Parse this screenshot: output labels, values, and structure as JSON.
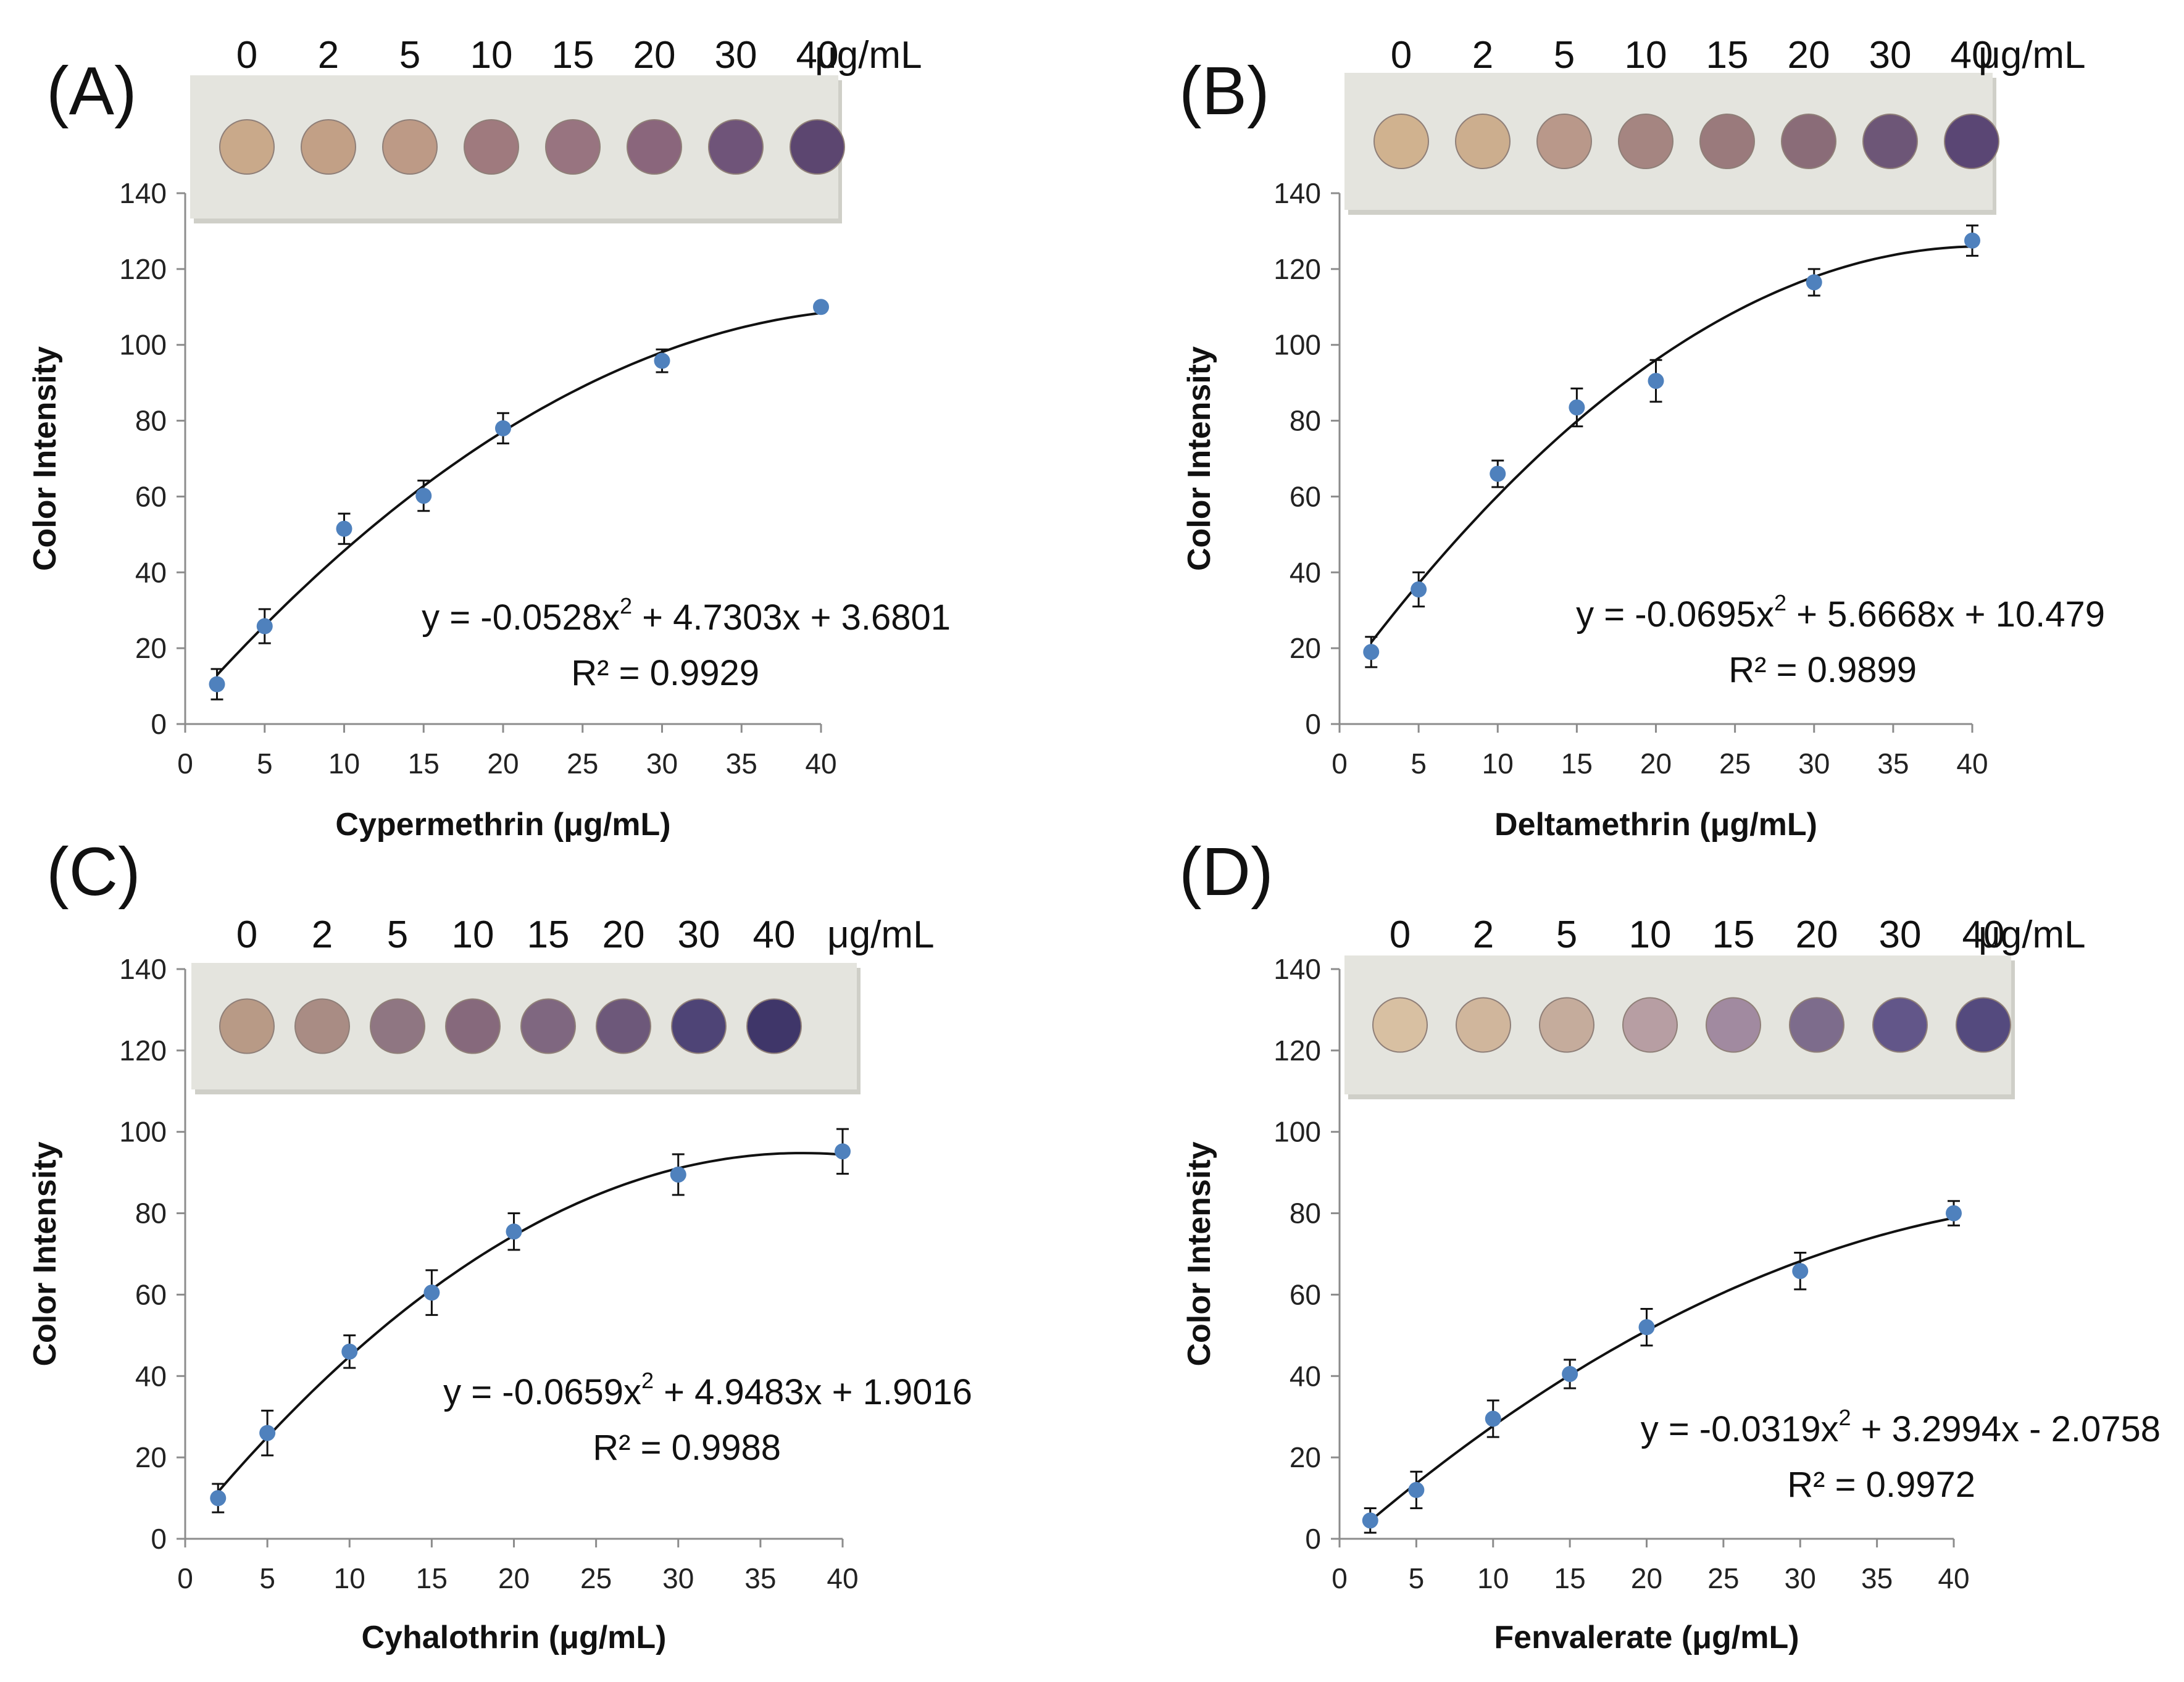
{
  "figure": {
    "unit_label": "μg/mL",
    "y_axis_title": "Color Intensity",
    "r2_prefix": "R² = "
  },
  "chart_data": [
    {
      "id": "A",
      "panel_label": "(A)",
      "type": "scatter",
      "title": "",
      "xlabel": "Cypermethrin (μg/mL)",
      "ylabel": "Color Intensity",
      "xlim": [
        0,
        40
      ],
      "ylim": [
        0,
        140
      ],
      "xticks": [
        0,
        5,
        10,
        15,
        20,
        25,
        30,
        35,
        40
      ],
      "yticks": [
        0,
        20,
        40,
        60,
        80,
        100,
        120,
        140
      ],
      "concentrations": [
        "0",
        "2",
        "5",
        "10",
        "15",
        "20",
        "30",
        "40"
      ],
      "spot_colors": [
        "#c9a98a",
        "#c2a086",
        "#bd9a86",
        "#9f7a7e",
        "#987480",
        "#8a667c",
        "#6f5479",
        "#5c4670"
      ],
      "series": [
        {
          "name": "Cypermethrin",
          "x": [
            2,
            5,
            10,
            15,
            20,
            30,
            40
          ],
          "y": [
            10.5,
            25.8,
            51.5,
            60.2,
            78.0,
            95.8,
            110.0
          ],
          "err": [
            4.0,
            4.5,
            4.0,
            4.0,
            4.0,
            3.0,
            1.0
          ]
        }
      ],
      "fit": {
        "a": -0.0528,
        "b": 4.7303,
        "c": 3.6801,
        "x_from": 2,
        "x_to": 40
      },
      "equation": {
        "prefix": "y = -0.0528x",
        "suffix": " + 4.7303x + 3.6801",
        "r2": "0.9929"
      }
    },
    {
      "id": "B",
      "panel_label": "(B)",
      "type": "scatter",
      "title": "",
      "xlabel": "Deltamethrin (μg/mL)",
      "ylabel": "Color Intensity",
      "xlim": [
        0,
        40
      ],
      "ylim": [
        0,
        140
      ],
      "xticks": [
        0,
        5,
        10,
        15,
        20,
        25,
        30,
        35,
        40
      ],
      "yticks": [
        0,
        20,
        40,
        60,
        80,
        100,
        120,
        140
      ],
      "concentrations": [
        "0",
        "2",
        "5",
        "10",
        "15",
        "20",
        "30",
        "40"
      ],
      "spot_colors": [
        "#d0b28f",
        "#ccae8e",
        "#b9988a",
        "#a58581",
        "#9a7a7c",
        "#8a6c78",
        "#6d5677",
        "#5a4674"
      ],
      "series": [
        {
          "name": "Deltamethrin",
          "x": [
            2,
            5,
            10,
            15,
            20,
            30,
            40
          ],
          "y": [
            19.0,
            35.5,
            66.0,
            83.5,
            90.5,
            116.5,
            127.5
          ],
          "err": [
            4.0,
            4.5,
            3.5,
            5.0,
            5.5,
            3.5,
            4.0
          ]
        }
      ],
      "fit": {
        "a": -0.0695,
        "b": 5.6668,
        "c": 10.479,
        "x_from": 2,
        "x_to": 40
      },
      "equation": {
        "prefix": "y = -0.0695x",
        "suffix": " + 5.6668x + 10.479",
        "r2": "0.9899"
      }
    },
    {
      "id": "C",
      "panel_label": "(C)",
      "type": "scatter",
      "title": "",
      "xlabel": "Cyhalothrin (μg/mL)",
      "ylabel": "Color Intensity",
      "xlim": [
        0,
        40
      ],
      "ylim": [
        0,
        140
      ],
      "xticks": [
        0,
        5,
        10,
        15,
        20,
        25,
        30,
        35,
        40
      ],
      "yticks": [
        0,
        20,
        40,
        60,
        80,
        100,
        120,
        140
      ],
      "concentrations": [
        "0",
        "2",
        "5",
        "10",
        "15",
        "20",
        "30",
        "40"
      ],
      "spot_colors": [
        "#b89a86",
        "#a98c84",
        "#8f7682",
        "#86697c",
        "#7f6780",
        "#6d587a",
        "#4e4476",
        "#3f3669"
      ],
      "series": [
        {
          "name": "Cyhalothrin",
          "x": [
            2,
            5,
            10,
            15,
            20,
            30,
            40
          ],
          "y": [
            10.0,
            26.0,
            46.0,
            60.5,
            75.5,
            89.5,
            95.2
          ],
          "err": [
            3.5,
            5.5,
            4.0,
            5.5,
            4.5,
            5.0,
            5.5
          ]
        }
      ],
      "fit": {
        "a": -0.0659,
        "b": 4.9483,
        "c": 1.9016,
        "x_from": 2,
        "x_to": 40
      },
      "equation": {
        "prefix": "y = -0.0659x",
        "suffix": " + 4.9483x + 1.9016",
        "r2": "0.9988"
      }
    },
    {
      "id": "D",
      "panel_label": "(D)",
      "type": "scatter",
      "title": "",
      "xlabel": "Fenvalerate (μg/mL)",
      "ylabel": "Color Intensity",
      "xlim": [
        0,
        40
      ],
      "ylim": [
        0,
        140
      ],
      "xticks": [
        0,
        5,
        10,
        15,
        20,
        25,
        30,
        35,
        40
      ],
      "yticks": [
        0,
        20,
        40,
        60,
        80,
        100,
        120,
        140
      ],
      "concentrations": [
        "0",
        "2",
        "5",
        "10",
        "15",
        "20",
        "30",
        "40"
      ],
      "spot_colors": [
        "#d8c0a2",
        "#d0b69c",
        "#c5ac9c",
        "#b79ea3",
        "#a18aa0",
        "#7d6c8c",
        "#625689",
        "#544a7e"
      ],
      "series": [
        {
          "name": "Fenvalerate",
          "x": [
            2,
            5,
            10,
            15,
            20,
            30,
            40
          ],
          "y": [
            4.5,
            12.0,
            29.5,
            40.5,
            52.0,
            65.8,
            80.0
          ],
          "err": [
            3.0,
            4.5,
            4.5,
            3.5,
            4.5,
            4.5,
            3.0
          ]
        }
      ],
      "fit": {
        "a": -0.0319,
        "b": 3.2994,
        "c": -2.0758,
        "x_from": 2,
        "x_to": 40
      },
      "equation": {
        "prefix": "y = -0.0319x",
        "suffix": " + 3.2994x - 2.0758",
        "r2": "0.9972"
      }
    }
  ]
}
